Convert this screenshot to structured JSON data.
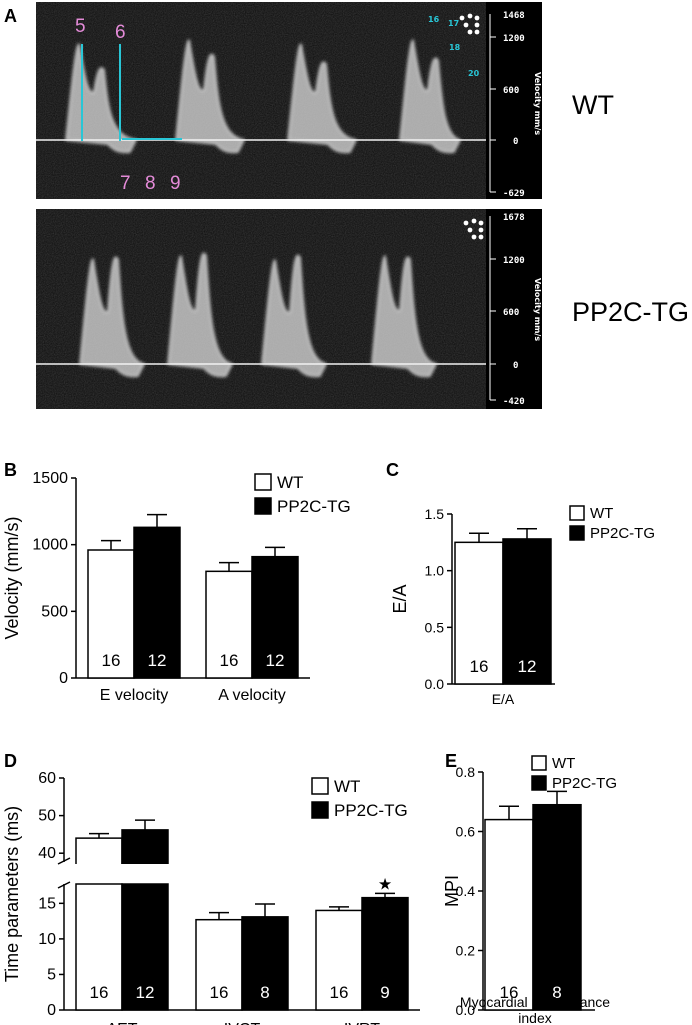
{
  "panels": {
    "A": {
      "label": "A",
      "wt": {
        "side_label": "WT",
        "y_ticks": [
          "1468",
          "1200",
          "600",
          "0",
          "-629"
        ],
        "y_label": "Velocity mm/s",
        "markers": [
          "5",
          "6",
          "7",
          "8",
          "9"
        ],
        "cyan_numbers": [
          "16",
          "17",
          "18",
          "20"
        ]
      },
      "tg": {
        "side_label": "PP2C-TG",
        "y_ticks": [
          "1678",
          "1200",
          "600",
          "0",
          "-420"
        ],
        "y_label": "Velocity mm/s"
      }
    },
    "B": {
      "label": "B"
    },
    "C": {
      "label": "C"
    },
    "D": {
      "label": "D"
    },
    "E": {
      "label": "E"
    }
  },
  "colors": {
    "wt_fill": "#ffffff",
    "tg_fill": "#000000",
    "doppler_bg": "#0c0c0c",
    "marker": "#e48bd8",
    "cyan": "#29c6d6"
  },
  "chart_data": [
    {
      "panel": "B",
      "type": "bar",
      "categories": [
        "E velocity",
        "A velocity"
      ],
      "series": [
        {
          "name": "WT",
          "values": [
            960,
            800
          ],
          "errors": [
            70,
            65
          ],
          "n": [
            "16",
            "16"
          ]
        },
        {
          "name": "PP2C-TG",
          "values": [
            1130,
            910
          ],
          "errors": [
            95,
            70
          ],
          "n": [
            "12",
            "12"
          ]
        }
      ],
      "ylabel": "Velocity (mm/s)",
      "ylim": [
        0,
        1500
      ],
      "yticks": [
        "0",
        "500",
        "1000",
        "1500"
      ],
      "legend": "top-right"
    },
    {
      "panel": "C",
      "type": "bar",
      "categories": [
        "E/A"
      ],
      "series": [
        {
          "name": "WT",
          "values": [
            1.25
          ],
          "errors": [
            0.08
          ],
          "n": [
            "16"
          ]
        },
        {
          "name": "PP2C-TG",
          "values": [
            1.28
          ],
          "errors": [
            0.09
          ],
          "n": [
            "12"
          ]
        }
      ],
      "ylabel": "E/A",
      "ylim": [
        0,
        1.5
      ],
      "yticks": [
        "0.0",
        "0.5",
        "1.0",
        "1.5"
      ],
      "legend": "top-right"
    },
    {
      "panel": "D",
      "type": "bar",
      "categories": [
        "AET",
        "IVCT",
        "IVRT"
      ],
      "series": [
        {
          "name": "WT",
          "values": [
            44,
            12.7,
            14
          ],
          "errors": [
            1.2,
            1.0,
            0.5
          ],
          "n": [
            "16",
            "16",
            "16"
          ]
        },
        {
          "name": "PP2C-TG",
          "values": [
            46.2,
            13.1,
            15.8
          ],
          "errors": [
            2.6,
            1.8,
            0.6
          ],
          "n": [
            "12",
            "8",
            "9"
          ]
        }
      ],
      "ylabel": "Time parameters (ms)",
      "axis_break": {
        "lower": [
          0,
          18
        ],
        "upper": [
          35,
          60
        ]
      },
      "yticks_lower": [
        "0",
        "5",
        "10",
        "15"
      ],
      "yticks_upper": [
        "40",
        "50",
        "60"
      ],
      "significance": {
        "category": "IVRT",
        "series": "PP2C-TG",
        "symbol": "★"
      },
      "legend": "top-right"
    },
    {
      "panel": "E",
      "type": "bar",
      "categories": [
        "Myocardial performance index"
      ],
      "series": [
        {
          "name": "WT",
          "values": [
            0.64
          ],
          "errors": [
            0.045
          ],
          "n": [
            "16"
          ]
        },
        {
          "name": "PP2C-TG",
          "values": [
            0.69
          ],
          "errors": [
            0.045
          ],
          "n": [
            "8"
          ]
        }
      ],
      "ylabel": "MPI",
      "ylim": [
        0,
        0.8
      ],
      "yticks": [
        "0.0",
        "0.2",
        "0.4",
        "0.6",
        "0.8"
      ],
      "legend": "top-left"
    }
  ]
}
